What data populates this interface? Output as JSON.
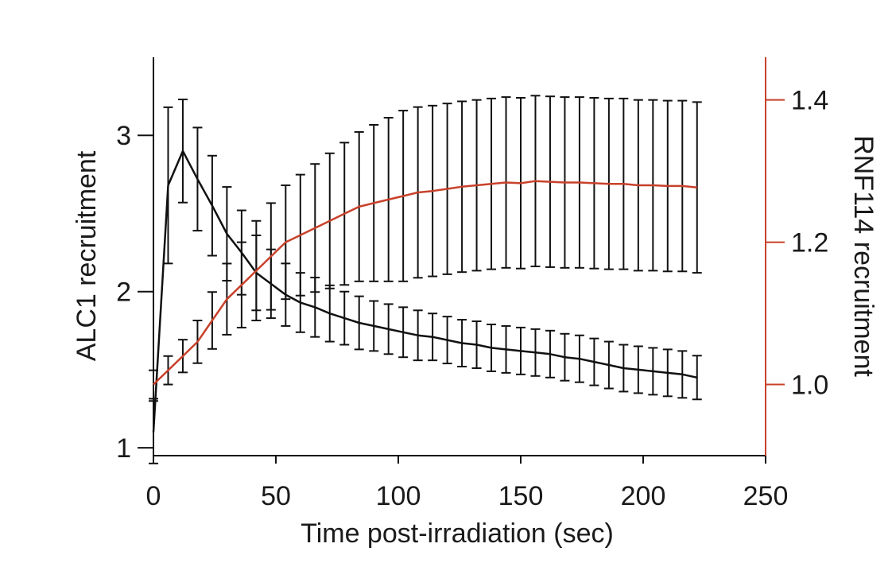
{
  "chart_data": {
    "type": "line",
    "title": "",
    "xlabel": "Time post-irradiation (sec)",
    "xlim": [
      0,
      250
    ],
    "x_ticks": [
      "0",
      "50",
      "100",
      "150",
      "200",
      "250"
    ],
    "x_tick_values": [
      0,
      50,
      100,
      150,
      200,
      250
    ],
    "y_left": {
      "label": "ALC1 recruitment",
      "lim": [
        0.95,
        3.5
      ],
      "ticks": [
        "1",
        "2",
        "3"
      ],
      "tick_values": [
        1,
        2,
        3
      ]
    },
    "y_right": {
      "label": "RNF114 recruitment",
      "lim": [
        0.9,
        1.46
      ],
      "ticks": [
        "1.0",
        "1.2",
        "1.4"
      ],
      "tick_values": [
        1.0,
        1.2,
        1.4
      ],
      "color": "#c8412b"
    },
    "x": [
      0,
      6,
      12,
      18,
      24,
      30,
      36,
      42,
      48,
      54,
      60,
      66,
      72,
      78,
      84,
      90,
      96,
      102,
      108,
      114,
      120,
      126,
      132,
      138,
      144,
      150,
      156,
      162,
      168,
      174,
      180,
      186,
      192,
      198,
      204,
      210,
      216,
      222
    ],
    "series": [
      {
        "name": "ALC1",
        "axis": "left",
        "color": "#111111",
        "values": [
          1.1,
          2.68,
          2.9,
          2.72,
          2.55,
          2.37,
          2.25,
          2.12,
          2.05,
          1.98,
          1.93,
          1.9,
          1.86,
          1.83,
          1.8,
          1.78,
          1.76,
          1.74,
          1.72,
          1.71,
          1.69,
          1.67,
          1.66,
          1.64,
          1.63,
          1.62,
          1.61,
          1.6,
          1.58,
          1.57,
          1.55,
          1.53,
          1.51,
          1.5,
          1.49,
          1.48,
          1.47,
          1.45
        ],
        "errors": [
          0.2,
          0.5,
          0.33,
          0.33,
          0.32,
          0.3,
          0.27,
          0.24,
          0.22,
          0.2,
          0.19,
          0.19,
          0.18,
          0.17,
          0.17,
          0.16,
          0.16,
          0.16,
          0.16,
          0.15,
          0.15,
          0.15,
          0.15,
          0.15,
          0.15,
          0.15,
          0.15,
          0.15,
          0.15,
          0.15,
          0.15,
          0.15,
          0.15,
          0.15,
          0.15,
          0.15,
          0.15,
          0.14
        ]
      },
      {
        "name": "RNF114",
        "axis": "right",
        "color": "#c8412b",
        "values": [
          1.0,
          1.02,
          1.04,
          1.06,
          1.09,
          1.12,
          1.14,
          1.16,
          1.18,
          1.2,
          1.21,
          1.22,
          1.23,
          1.24,
          1.25,
          1.255,
          1.26,
          1.265,
          1.27,
          1.272,
          1.275,
          1.278,
          1.28,
          1.282,
          1.284,
          1.283,
          1.286,
          1.285,
          1.284,
          1.284,
          1.283,
          1.282,
          1.282,
          1.28,
          1.28,
          1.279,
          1.279,
          1.277
        ],
        "errors": [
          0.02,
          0.02,
          0.023,
          0.03,
          0.04,
          0.05,
          0.06,
          0.07,
          0.075,
          0.08,
          0.085,
          0.09,
          0.095,
          0.1,
          0.105,
          0.11,
          0.115,
          0.12,
          0.12,
          0.12,
          0.12,
          0.12,
          0.12,
          0.12,
          0.12,
          0.12,
          0.12,
          0.12,
          0.12,
          0.12,
          0.12,
          0.12,
          0.12,
          0.12,
          0.12,
          0.12,
          0.12,
          0.12
        ]
      }
    ]
  }
}
